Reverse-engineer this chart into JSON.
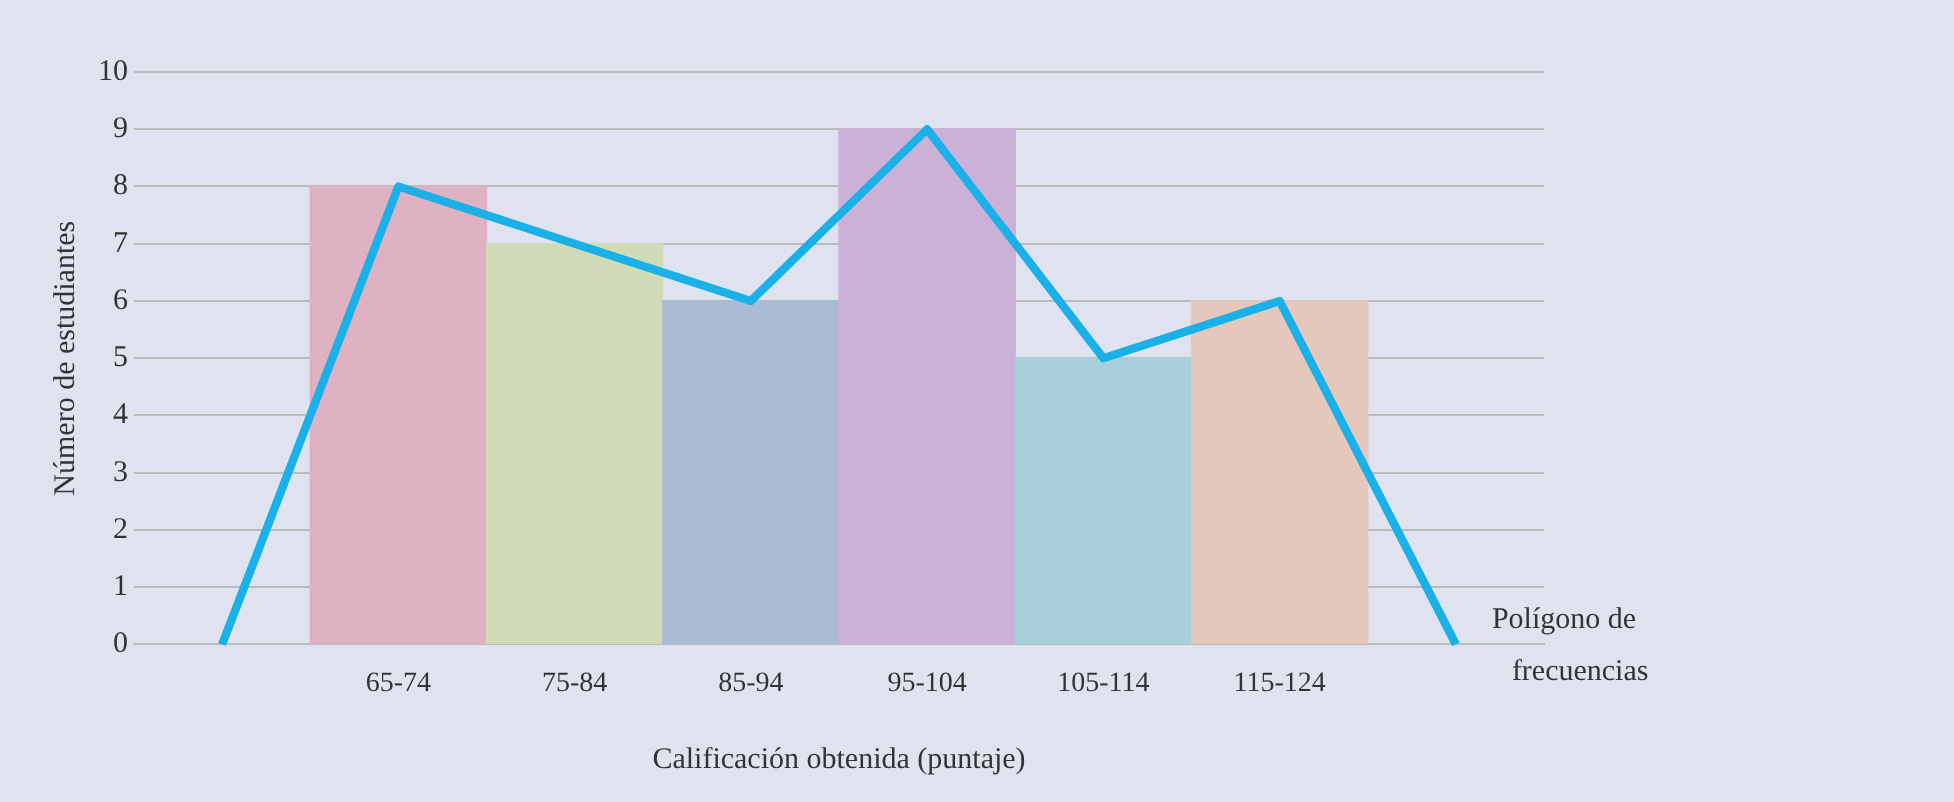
{
  "chart_data": {
    "type": "bar",
    "xlabel": "Calificación obtenida (puntaje)",
    "ylabel": "Número de estudiantes",
    "categories": [
      null,
      "65-74",
      "75-84",
      "85-94",
      "95-104",
      "105-114",
      "115-124",
      null
    ],
    "values": [
      null,
      8,
      7,
      6,
      9,
      5,
      6,
      null
    ],
    "colors": [
      "#dfb2c3",
      "#dfb2c3",
      "#d2dbb7",
      "#aabbd6",
      "#cbb0d7",
      "#a8d0da",
      "#e6c7bb",
      "#e6c7bb"
    ],
    "series": [
      {
        "type": "line",
        "name": "Polígono de frecuencias",
        "color": "#1ab0e8",
        "values": [
          0,
          8,
          7,
          6,
          9,
          5,
          6,
          0
        ]
      }
    ],
    "ylim": [
      0,
      10
    ],
    "yticks": [
      0,
      1,
      2,
      3,
      4,
      5,
      6,
      7,
      8,
      9,
      10
    ],
    "grid": "y",
    "marker": "none",
    "legend": false
  }
}
